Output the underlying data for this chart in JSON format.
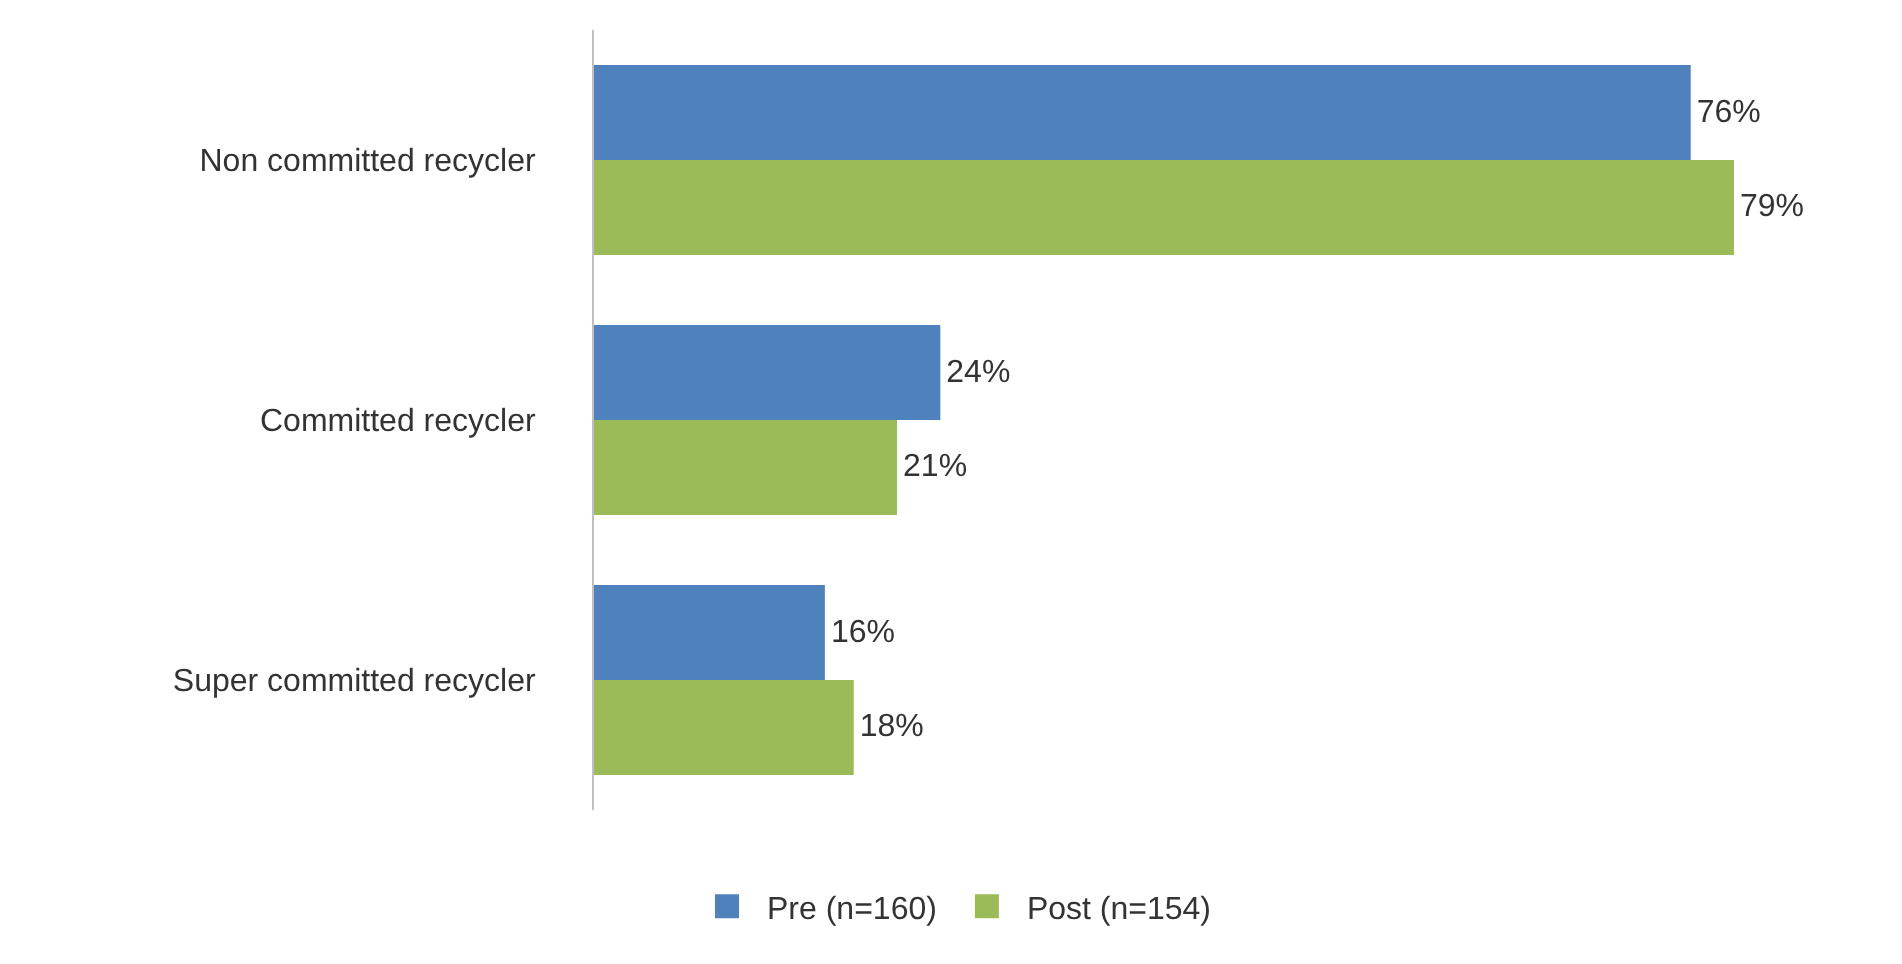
{
  "chart_data": {
    "type": "bar",
    "orientation": "horizontal",
    "categories": [
      "Non committed recycler",
      "Committed recycler",
      "Super committed recycler"
    ],
    "series": [
      {
        "name": "Pre (n=160)",
        "color": "#4f81bd",
        "values": [
          76,
          24,
          16
        ],
        "value_labels": [
          "76%",
          "24%",
          "16%"
        ]
      },
      {
        "name": "Post (n=154)",
        "color": "#9bbb59",
        "values": [
          79,
          21,
          18
        ],
        "value_labels": [
          "79%",
          "21%",
          "18%"
        ]
      }
    ],
    "legend": "bottom",
    "tick_labels": "y"
  }
}
